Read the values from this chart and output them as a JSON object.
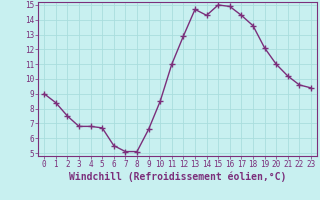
{
  "x": [
    0,
    1,
    2,
    3,
    4,
    5,
    6,
    7,
    8,
    9,
    10,
    11,
    12,
    13,
    14,
    15,
    16,
    17,
    18,
    19,
    20,
    21,
    22,
    23
  ],
  "y": [
    9.0,
    8.4,
    7.5,
    6.8,
    6.8,
    6.7,
    5.5,
    5.1,
    5.1,
    6.6,
    8.5,
    11.0,
    12.9,
    14.7,
    14.3,
    15.0,
    14.9,
    14.3,
    13.6,
    12.1,
    11.0,
    10.2,
    9.6,
    9.4
  ],
  "line_color": "#7b2f7b",
  "marker": "+",
  "marker_size": 4,
  "marker_linewidth": 1.0,
  "line_width": 1.0,
  "background_color": "#c8f0f0",
  "grid_color": "#aadddd",
  "xlabel": "Windchill (Refroidissement éolien,°C)",
  "xlabel_color": "#7b2f7b",
  "xlim": [
    -0.5,
    23.5
  ],
  "ylim": [
    4.8,
    15.2
  ],
  "yticks": [
    5,
    6,
    7,
    8,
    9,
    10,
    11,
    12,
    13,
    14,
    15
  ],
  "xticks": [
    0,
    1,
    2,
    3,
    4,
    5,
    6,
    7,
    8,
    9,
    10,
    11,
    12,
    13,
    14,
    15,
    16,
    17,
    18,
    19,
    20,
    21,
    22,
    23
  ],
  "tick_label_fontsize": 5.5,
  "xlabel_fontsize": 7.0,
  "spine_color": "#7b2f7b"
}
